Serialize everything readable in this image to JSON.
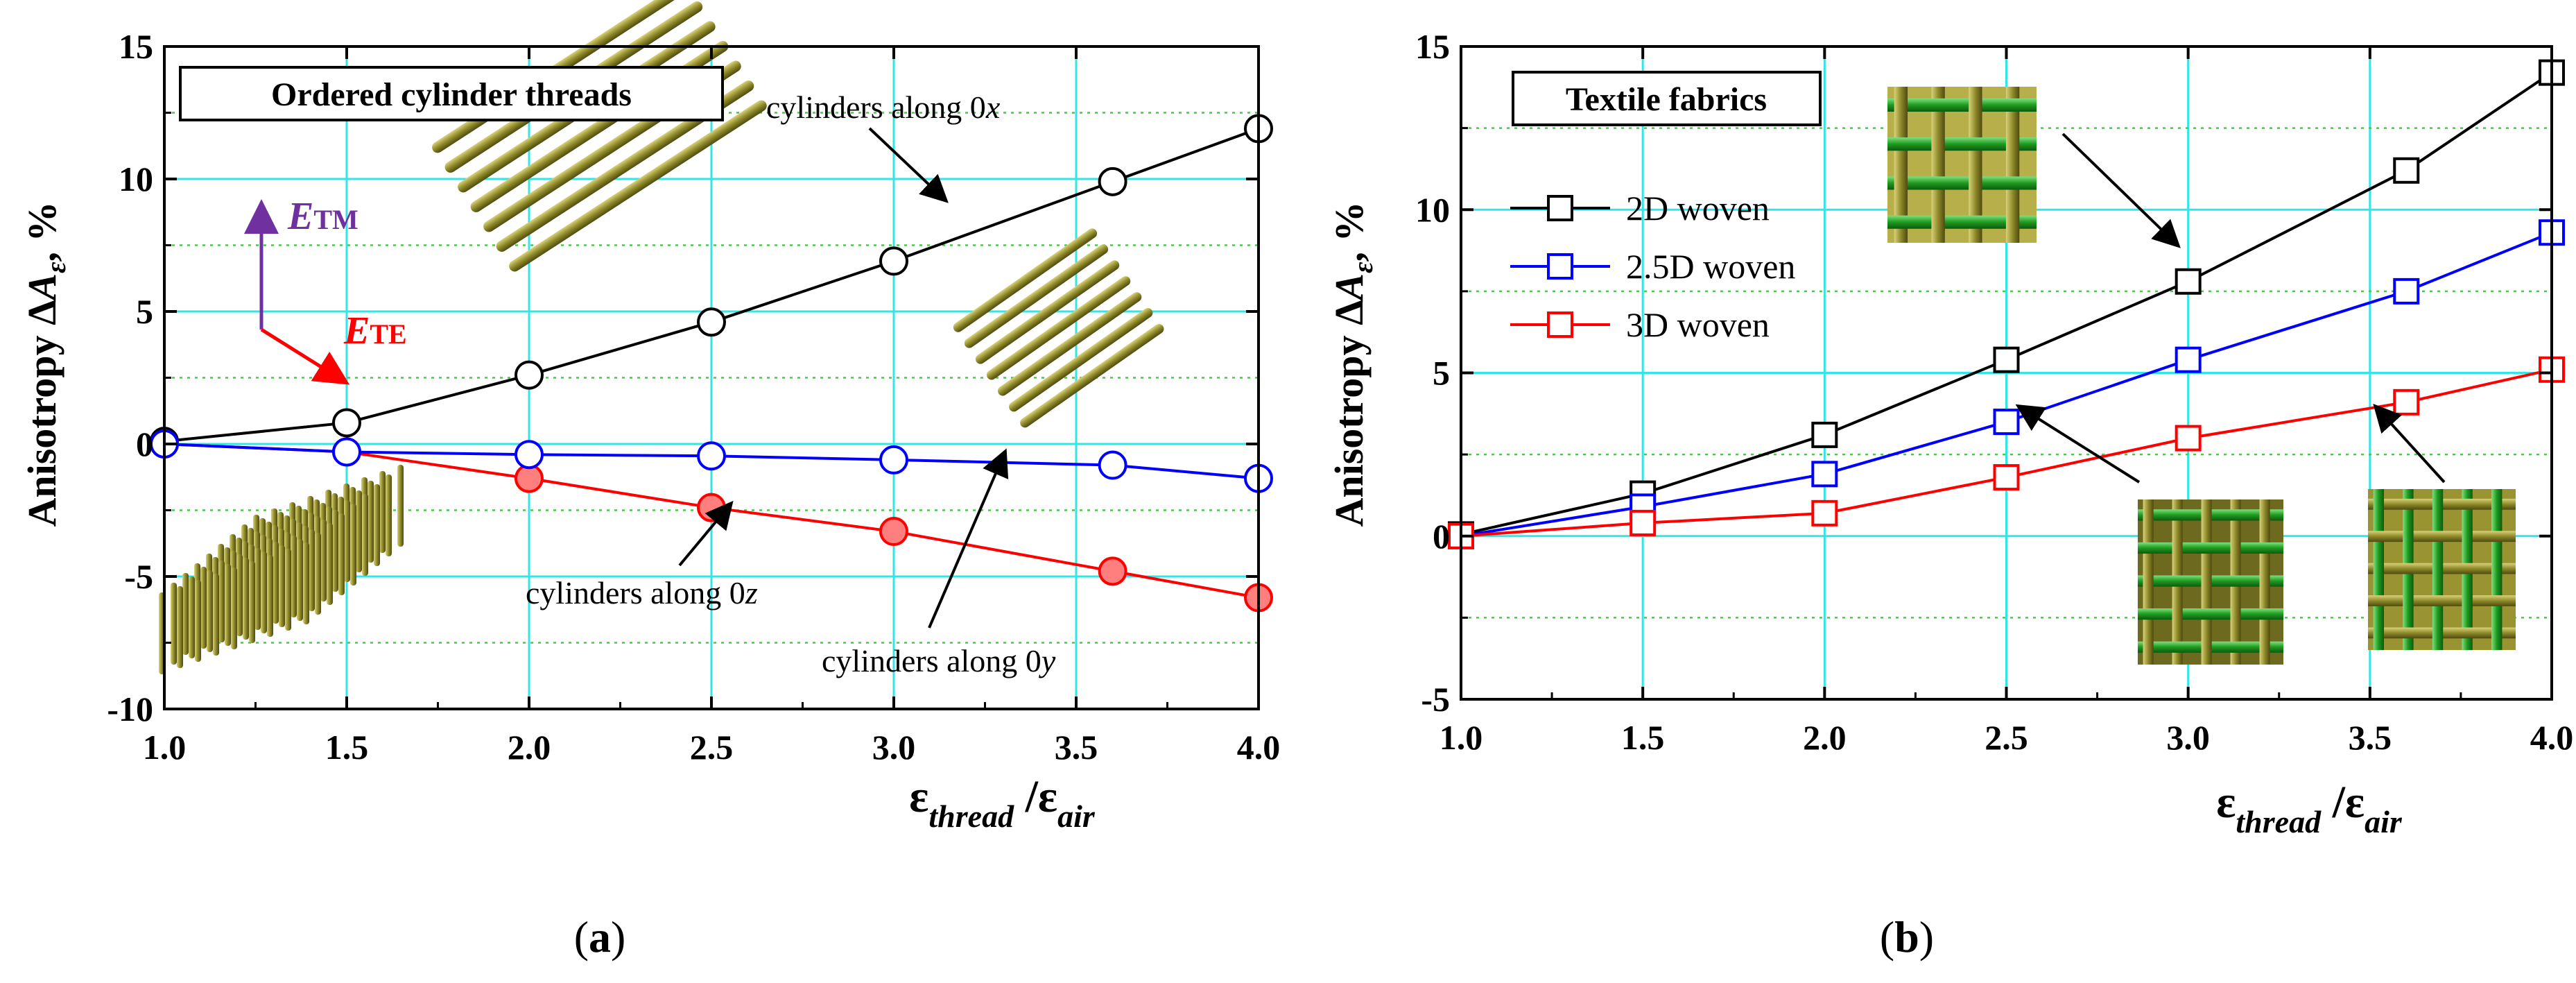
{
  "chart_data": [
    {
      "id": "a",
      "type": "line",
      "panel_label": "(a)",
      "box_label": "Ordered cylinder threads",
      "ylabel": "Anisotropy ΔAε, %",
      "ylabel_parts": {
        "main": "Anisotropy Δ",
        "sym": "A",
        "sub": "ε",
        "unit": ", %"
      },
      "xlabel_parts": {
        "num": "ε",
        "num_sub": "thread",
        "sep": " /",
        "den": "ε",
        "den_sub": "air"
      },
      "xlim": [
        1.0,
        4.0
      ],
      "ylim": [
        -10,
        15
      ],
      "xticks": [
        "1.0",
        "1.5",
        "2.0",
        "2.5",
        "3.0",
        "3.5",
        "4.0"
      ],
      "xtick_values": [
        1.0,
        1.5,
        2.0,
        2.5,
        3.0,
        3.5,
        4.0
      ],
      "yticks": [
        "-10",
        "-5",
        "0",
        "5",
        "10",
        "15"
      ],
      "ytick_values": [
        -10,
        -5,
        0,
        5,
        10,
        15
      ],
      "grid": true,
      "field_labels": {
        "tm_base": "E",
        "tm_sub": "TM",
        "te_base": "E",
        "te_sub": "TE"
      },
      "series": [
        {
          "name": "cylinders along 0x",
          "color": "#000000",
          "marker": "circle",
          "fill": "#ffffff",
          "x": [
            1.0,
            1.5,
            2.0,
            2.5,
            3.0,
            3.6,
            4.0
          ],
          "y": [
            0.1,
            0.8,
            2.6,
            4.6,
            6.9,
            9.9,
            11.9
          ]
        },
        {
          "name": "cylinders along 0z",
          "color": "#ff0000",
          "marker": "circle",
          "fill": "#ff7f7f",
          "x": [
            1.0,
            1.5,
            2.0,
            2.5,
            3.0,
            3.6,
            4.0
          ],
          "y": [
            0.0,
            -0.3,
            -1.3,
            -2.4,
            -3.3,
            -4.8,
            -5.8
          ]
        },
        {
          "name": "cylinders along 0y",
          "color": "#0000ff",
          "marker": "circle",
          "fill": "#ffffff",
          "x": [
            1.0,
            1.5,
            2.0,
            2.5,
            3.0,
            3.6,
            4.0
          ],
          "y": [
            0.0,
            -0.3,
            -0.4,
            -0.45,
            -0.6,
            -0.8,
            -1.3
          ]
        }
      ],
      "annotations": [
        {
          "prefix": "cylinders along 0",
          "axis": "x"
        },
        {
          "prefix": "cylinders along 0",
          "axis": "z"
        },
        {
          "prefix": "cylinders along 0",
          "axis": "y"
        }
      ]
    },
    {
      "id": "b",
      "type": "line",
      "panel_label": "(b)",
      "box_label": "Textile fabrics",
      "ylabel": "Anisotropy ΔAε, %",
      "ylabel_parts": {
        "main": "Anisotropy Δ",
        "sym": "A",
        "sub": "ε",
        "unit": ", %"
      },
      "xlabel_parts": {
        "num": "ε",
        "num_sub": "thread",
        "sep": " /",
        "den": "ε",
        "den_sub": "air"
      },
      "xlim": [
        1.0,
        4.0
      ],
      "ylim": [
        -5,
        15
      ],
      "xticks": [
        "1.0",
        "1.5",
        "2.0",
        "2.5",
        "3.0",
        "3.5",
        "4.0"
      ],
      "xtick_values": [
        1.0,
        1.5,
        2.0,
        2.5,
        3.0,
        3.5,
        4.0
      ],
      "yticks": [
        "-5",
        "0",
        "5",
        "10",
        "15"
      ],
      "ytick_values": [
        -5,
        0,
        5,
        10,
        15
      ],
      "grid": true,
      "legend_position": "upper-left",
      "series": [
        {
          "name": "2D  woven",
          "color": "#000000",
          "marker": "square",
          "fill": "#ffffff",
          "x": [
            1.0,
            1.5,
            2.0,
            2.5,
            3.0,
            3.6,
            4.0
          ],
          "y": [
            0.05,
            1.3,
            3.1,
            5.4,
            7.8,
            11.2,
            14.2
          ]
        },
        {
          "name": "2.5D woven",
          "color": "#0000ff",
          "marker": "square",
          "fill": "#ffffff",
          "x": [
            1.0,
            1.5,
            2.0,
            2.5,
            3.0,
            3.6,
            4.0
          ],
          "y": [
            0.0,
            0.9,
            1.9,
            3.5,
            5.4,
            7.5,
            9.3
          ]
        },
        {
          "name": "3D  woven",
          "color": "#ff0000",
          "marker": "square",
          "fill": "#ffffff",
          "x": [
            1.0,
            1.5,
            2.0,
            2.5,
            3.0,
            3.6,
            4.0
          ],
          "y": [
            0.0,
            0.4,
            0.7,
            1.8,
            3.0,
            4.1,
            5.1
          ]
        }
      ]
    }
  ]
}
